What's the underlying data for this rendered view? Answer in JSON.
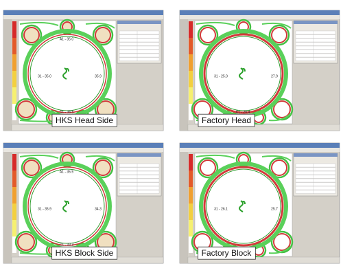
{
  "panels": [
    {
      "caption": "HKS Head Side",
      "readings": [
        "A1 - 35.0",
        "31 - 35.0",
        "35.9",
        "C1 - 36.5"
      ]
    },
    {
      "caption": "Factory Head",
      "readings": [
        "31 - 25.0",
        "27.9",
        "C1 - 26.4"
      ]
    },
    {
      "caption": "HKS Block Side",
      "readings": [
        "A1 - 35.5",
        "31 - 35.9",
        "34.3",
        "C1 - 33.3"
      ]
    },
    {
      "caption": "Factory Block",
      "readings": [
        "31 - 26.1",
        "25.7"
      ]
    }
  ]
}
